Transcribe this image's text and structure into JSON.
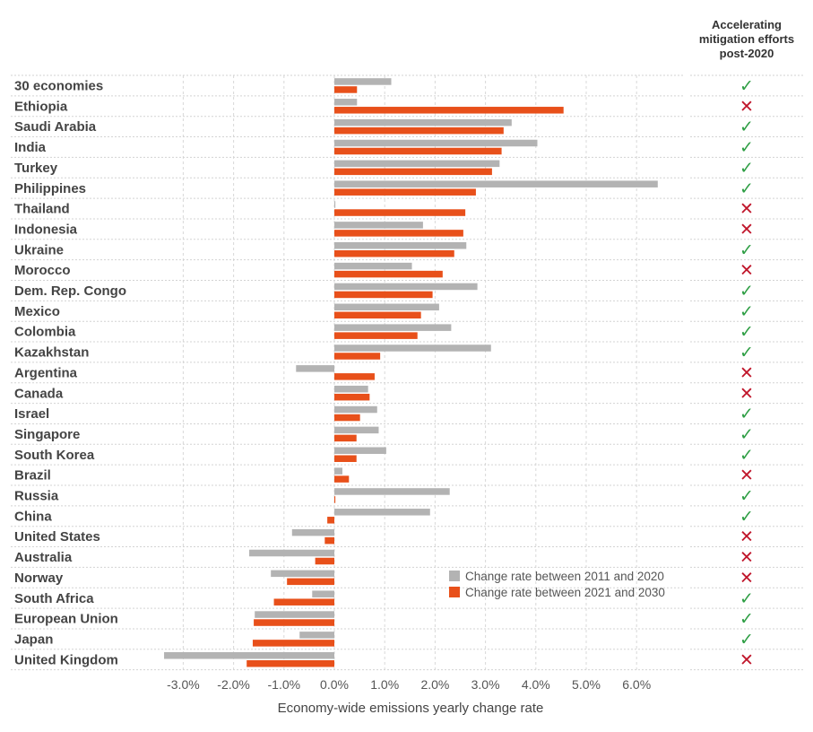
{
  "chart_data": {
    "type": "bar",
    "orientation": "horizontal",
    "xlabel": "Economy-wide emissions yearly change rate",
    "xlim": [
      -0.036,
      0.068
    ],
    "x_ticks": [
      {
        "value": -0.03,
        "label": "-3.0%"
      },
      {
        "value": -0.02,
        "label": "-2.0%"
      },
      {
        "value": -0.01,
        "label": "-1.0%"
      },
      {
        "value": 0.0,
        "label": "0.0%"
      },
      {
        "value": 0.01,
        "label": "1.0%"
      },
      {
        "value": 0.02,
        "label": "2.0%"
      },
      {
        "value": 0.03,
        "label": "3.0%"
      },
      {
        "value": 0.04,
        "label": "4.0%"
      },
      {
        "value": 0.05,
        "label": "5.0%"
      },
      {
        "value": 0.06,
        "label": "6.0%"
      }
    ],
    "grid": true,
    "legend_position": "bottom-right",
    "categories": [
      "30 economies",
      "Ethiopia",
      "Saudi Arabia",
      "India",
      "Turkey",
      "Philippines",
      "Thailand",
      "Indonesia",
      "Ukraine",
      "Morocco",
      "Dem. Rep. Congo",
      "Mexico",
      "Colombia",
      "Kazakhstan",
      "Argentina",
      "Canada",
      "Israel",
      "Singapore",
      "South Korea",
      "Brazil",
      "Russia",
      "China",
      "United States",
      "Australia",
      "Norway",
      "South Africa",
      "European Union",
      "Japan",
      "United Kingdom"
    ],
    "series": [
      {
        "name": "Change rate between 2011 and 2020",
        "color": "#b3b3b3",
        "values": [
          0.0113,
          0.0045,
          0.0352,
          0.0403,
          0.0328,
          0.0642,
          0.0002,
          0.0176,
          0.0262,
          0.0154,
          0.0284,
          0.0208,
          0.0232,
          0.0311,
          -0.0076,
          0.0067,
          0.0085,
          0.0088,
          0.0103,
          0.0016,
          0.0229,
          0.019,
          -0.0084,
          -0.0169,
          -0.0126,
          -0.0044,
          -0.0158,
          -0.0069,
          -0.0338
        ]
      },
      {
        "name": "Change rate between 2021 and 2030",
        "color": "#e8501a",
        "values": [
          0.0045,
          0.0455,
          0.0336,
          0.0332,
          0.0313,
          0.0281,
          0.026,
          0.0256,
          0.0238,
          0.0215,
          0.0195,
          0.0172,
          0.0165,
          0.0091,
          0.008,
          0.007,
          0.0051,
          0.0044,
          0.0044,
          0.0029,
          0.0002,
          -0.0014,
          -0.0019,
          -0.0038,
          -0.0094,
          -0.012,
          -0.016,
          -0.0162,
          -0.0174
        ]
      }
    ]
  },
  "status_column": {
    "header": [
      "Accelerating",
      "mitigation efforts",
      "post-2020"
    ],
    "values": [
      true,
      false,
      true,
      true,
      true,
      true,
      false,
      false,
      true,
      false,
      true,
      true,
      true,
      true,
      false,
      false,
      true,
      true,
      true,
      false,
      true,
      true,
      false,
      false,
      false,
      true,
      true,
      true,
      false
    ],
    "check_symbol": "✓",
    "cross_symbol": "✕",
    "check_color": "#2e9e44",
    "cross_color": "#c0162b"
  }
}
